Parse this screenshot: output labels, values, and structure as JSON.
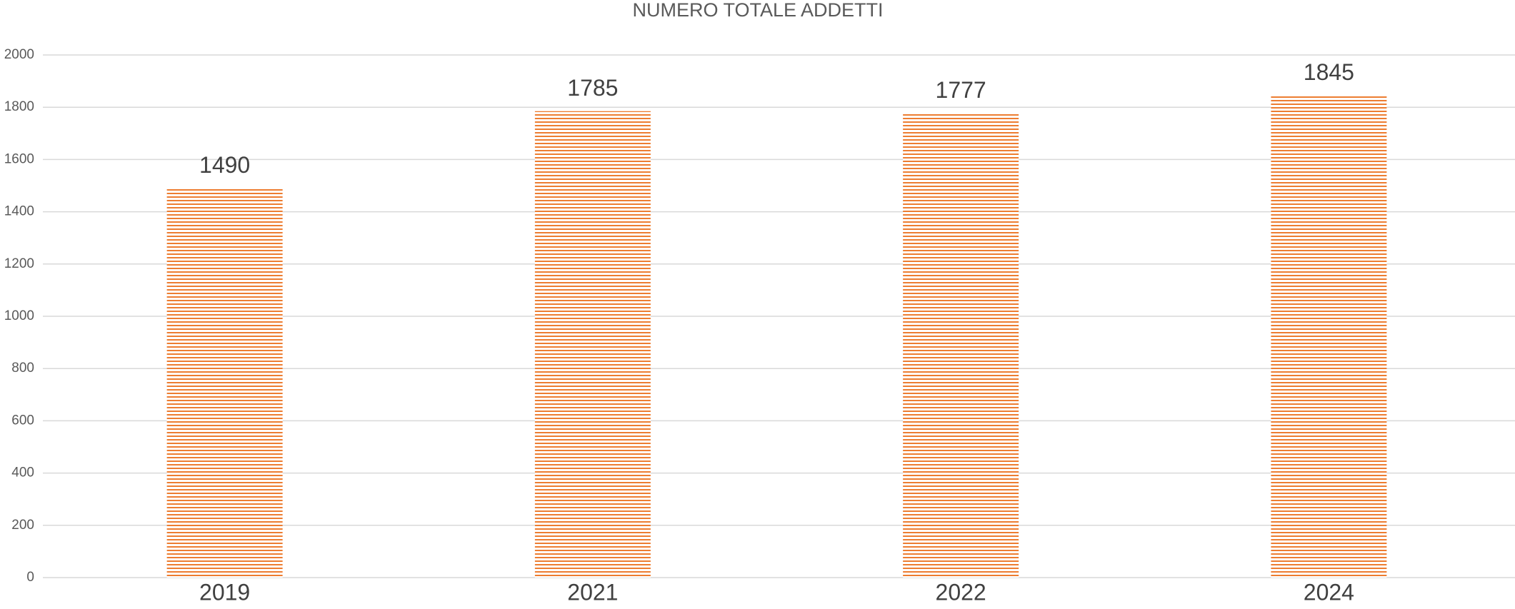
{
  "chart_data": {
    "type": "bar",
    "title": "NUMERO TOTALE ADDETTI",
    "categories": [
      "2019",
      "2021",
      "2022",
      "2024"
    ],
    "values": [
      1490,
      1785,
      1777,
      1845
    ],
    "color": "#ed7d31",
    "ylim": [
      0,
      2000
    ],
    "yticks": [
      0,
      200,
      400,
      600,
      800,
      1000,
      1200,
      1400,
      1600,
      1800,
      2000
    ],
    "grid": true
  }
}
